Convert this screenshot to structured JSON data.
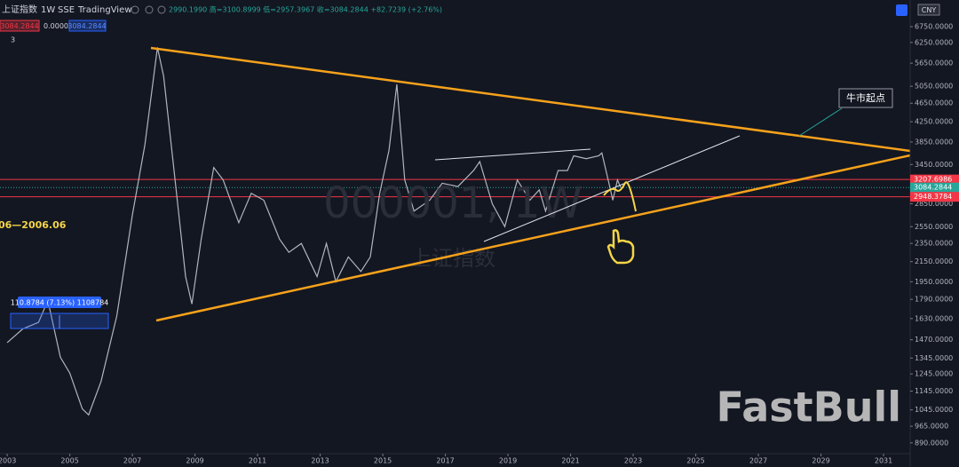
{
  "chart_data": {
    "type": "line",
    "title": "上证指数",
    "interval": "1W",
    "exchange": "SSE",
    "source": "TradingView",
    "ohlc": "2990.1990 高=3100.8999 低=2957.3967 收=3084.2844 +82.7239 (+2.76%)",
    "toolbar": {
      "price_box": "3084.2844",
      "change": "0.0000",
      "price_box2": "3084.2844",
      "indicator_count": "3",
      "currency": "CNY"
    },
    "watermark": [
      "000001, 1W",
      "上证指数"
    ],
    "logo": "FastBull",
    "annotations": [
      "牛市起点",
      "06—2006.06",
      "110.8784 (7.13%) 1108784"
    ],
    "log_scale": true,
    "grid": false,
    "color": "#b2b5be",
    "x": [
      2003.0,
      2003.5,
      2004.0,
      2004.3,
      2004.7,
      2005.0,
      2005.4,
      2005.6,
      2006.0,
      2006.5,
      2007.0,
      2007.4,
      2007.8,
      2008.0,
      2008.3,
      2008.7,
      2008.9,
      2009.2,
      2009.6,
      2009.9,
      2010.4,
      2010.8,
      2011.2,
      2011.7,
      2012.0,
      2012.4,
      2012.9,
      2013.2,
      2013.5,
      2013.9,
      2014.3,
      2014.6,
      2014.9,
      2015.2,
      2015.45,
      2015.7,
      2016.0,
      2016.5,
      2016.9,
      2017.4,
      2017.9,
      2018.1,
      2018.5,
      2018.9,
      2019.3,
      2019.7,
      2020.0,
      2020.2,
      2020.6,
      2020.9,
      2021.1,
      2021.5,
      2021.9,
      2022.0,
      2022.3,
      2022.35,
      2022.5,
      2022.6
    ],
    "values": [
      1450,
      1550,
      1600,
      1780,
      1350,
      1250,
      1050,
      1020,
      1200,
      1650,
      2700,
      3800,
      6100,
      5300,
      3500,
      2000,
      1750,
      2400,
      3400,
      3200,
      2600,
      3000,
      2900,
      2400,
      2250,
      2350,
      2000,
      2350,
      1950,
      2200,
      2050,
      2200,
      3000,
      3700,
      5100,
      3200,
      2750,
      2900,
      3150,
      3100,
      3350,
      3500,
      2850,
      2550,
      3200,
      2900,
      3050,
      2750,
      3350,
      3350,
      3600,
      3550,
      3600,
      3650,
      3000,
      2900,
      3200,
      3084.2844
    ],
    "xlim": [
      2002.77,
      2031.85
    ],
    "xticks": [
      2003,
      2005,
      2007,
      2009,
      2011,
      2013,
      2015,
      2017,
      2019,
      2021,
      2023,
      2025,
      2027,
      2029,
      2031
    ],
    "ylim": [
      848,
      7685
    ],
    "yticks": [
      {
        "value": 6750,
        "label": "6750.0000"
      },
      {
        "value": 6250,
        "label": "6250.0000"
      },
      {
        "value": 5650,
        "label": "5650.0000"
      },
      {
        "value": 5050,
        "label": "5050.0000"
      },
      {
        "value": 4650,
        "label": "4650.0000"
      },
      {
        "value": 4250,
        "label": "4250.0000"
      },
      {
        "value": 3850,
        "label": "3850.0000"
      },
      {
        "value": 3450,
        "label": "3450.0000"
      },
      {
        "value": 2850,
        "label": "2850.0000"
      },
      {
        "value": 2550,
        "label": "2550.0000"
      },
      {
        "value": 2350,
        "label": "2350.0000"
      },
      {
        "value": 2150,
        "label": "2150.0000"
      },
      {
        "value": 1950,
        "label": "1950.0000"
      },
      {
        "value": 1790,
        "label": "1790.0000"
      },
      {
        "value": 1630,
        "label": "1630.0000"
      },
      {
        "value": 1470,
        "label": "1470.0000"
      },
      {
        "value": 1345,
        "label": "1345.0000"
      },
      {
        "value": 1245,
        "label": "1245.0000"
      },
      {
        "value": 1145,
        "label": "1145.0000"
      },
      {
        "value": 1045,
        "label": "1045.0000"
      },
      {
        "value": 965,
        "label": "965.0000"
      },
      {
        "value": 890,
        "label": "890.0000"
      }
    ],
    "price_lines": [
      {
        "value": 3207.6986,
        "color": "#f23645"
      },
      {
        "value": 3084.2844,
        "color": "#26a69a"
      },
      {
        "value": 2948.3784,
        "color": "#f23645"
      }
    ]
  }
}
